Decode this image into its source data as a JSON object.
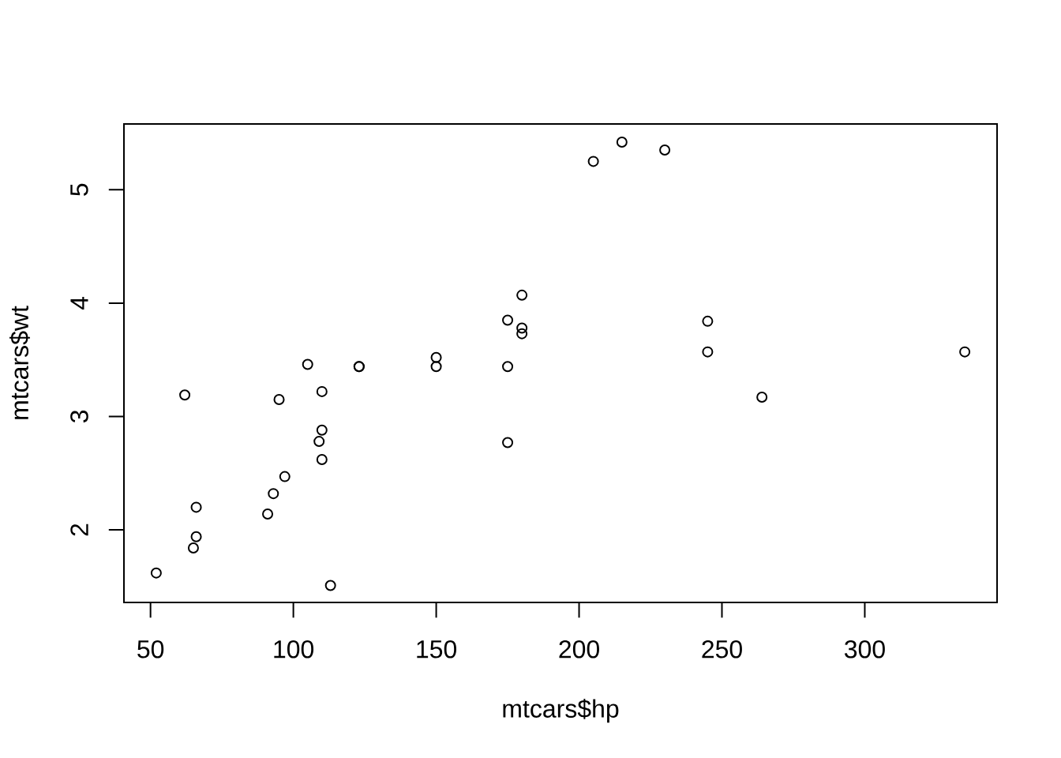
{
  "chart_data": {
    "type": "scatter",
    "xlabel": "mtcars$hp",
    "ylabel": "mtcars$wt",
    "x": [
      110,
      110,
      93,
      110,
      175,
      105,
      245,
      62,
      95,
      123,
      123,
      180,
      180,
      180,
      205,
      215,
      230,
      66,
      52,
      65,
      97,
      150,
      150,
      245,
      175,
      66,
      91,
      113,
      264,
      175,
      335,
      109
    ],
    "values": [
      2.62,
      2.88,
      2.32,
      3.22,
      3.44,
      3.46,
      3.57,
      3.19,
      3.15,
      3.44,
      3.44,
      4.07,
      3.73,
      3.78,
      5.25,
      5.42,
      5.35,
      2.2,
      1.62,
      1.84,
      2.47,
      3.52,
      3.44,
      3.84,
      3.85,
      1.94,
      2.14,
      1.51,
      3.17,
      2.77,
      3.57,
      2.78
    ],
    "color": "#000000",
    "marker": "circle",
    "xlim": [
      40.7,
      346.3
    ],
    "ylim": [
      1.36,
      5.58
    ],
    "xticks": [
      50,
      100,
      150,
      200,
      250,
      300
    ],
    "yticks": [
      2,
      3,
      4,
      5
    ]
  }
}
